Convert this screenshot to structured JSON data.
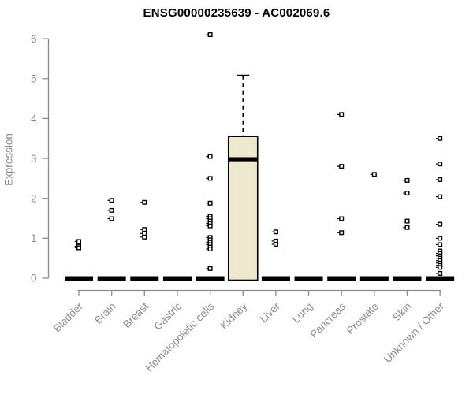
{
  "chart_data": {
    "type": "boxplot",
    "title": "ENSG00000235639 - AC002069.6",
    "ylabel": "Expression",
    "xlabel": "",
    "ylim": [
      0,
      6
    ],
    "yticks": [
      0,
      1,
      2,
      3,
      4,
      5,
      6
    ],
    "grid": false,
    "legend": false,
    "categories": [
      "Bladder",
      "Brain",
      "Breast",
      "Gastric",
      "Hematopoietic cells",
      "Kidney",
      "Liver",
      "Lung",
      "Pancreas",
      "Prostate",
      "Skin",
      "Unknown / Other"
    ],
    "boxes": [
      {
        "category": "Bladder",
        "q1": 0,
        "median": 0,
        "q3": 0,
        "whisker_low": 0,
        "whisker_high": 0,
        "outliers": [
          0.92,
          0.8,
          0.76
        ]
      },
      {
        "category": "Brain",
        "q1": 0,
        "median": 0,
        "q3": 0,
        "whisker_low": 0,
        "whisker_high": 0,
        "outliers": [
          1.95,
          1.7,
          1.49
        ]
      },
      {
        "category": "Breast",
        "q1": 0,
        "median": 0,
        "q3": 0,
        "whisker_low": 0,
        "whisker_high": 0,
        "outliers": [
          1.9,
          1.22,
          1.12,
          1.03
        ]
      },
      {
        "category": "Gastric",
        "q1": 0,
        "median": 0,
        "q3": 0,
        "whisker_low": 0,
        "whisker_high": 0,
        "outliers": []
      },
      {
        "category": "Hematopoietic cells",
        "q1": 0,
        "median": 0,
        "q3": 0,
        "whisker_low": 0,
        "whisker_high": 0,
        "outliers": [
          6.1,
          3.05,
          2.5,
          1.88,
          1.55,
          1.49,
          1.43,
          1.37,
          1.31,
          1.02,
          0.96,
          0.9,
          0.84,
          0.78,
          0.73,
          0.24
        ]
      },
      {
        "category": "Kidney",
        "q1": 0,
        "median": 2.98,
        "q3": 3.55,
        "whisker_low": 0,
        "whisker_high": 5.08,
        "outliers": []
      },
      {
        "category": "Liver",
        "q1": 0,
        "median": 0,
        "q3": 0,
        "whisker_low": 0,
        "whisker_high": 0,
        "outliers": [
          1.16,
          0.93,
          0.85
        ]
      },
      {
        "category": "Lung",
        "q1": 0,
        "median": 0,
        "q3": 0,
        "whisker_low": 0,
        "whisker_high": 0,
        "outliers": []
      },
      {
        "category": "Pancreas",
        "q1": 0,
        "median": 0,
        "q3": 0,
        "whisker_low": 0,
        "whisker_high": 0,
        "outliers": [
          4.1,
          2.8,
          1.49,
          1.14
        ]
      },
      {
        "category": "Prostate",
        "q1": 0,
        "median": 0,
        "q3": 0,
        "whisker_low": 0,
        "whisker_high": 0,
        "outliers": [
          2.6
        ]
      },
      {
        "category": "Skin",
        "q1": 0,
        "median": 0,
        "q3": 0,
        "whisker_low": 0,
        "whisker_high": 0,
        "outliers": [
          2.45,
          2.13,
          1.43,
          1.27
        ]
      },
      {
        "category": "Unknown / Other",
        "q1": 0,
        "median": 0,
        "q3": 0,
        "whisker_low": 0,
        "whisker_high": 0,
        "outliers": [
          3.5,
          2.86,
          2.47,
          2.04,
          1.35,
          1.0,
          0.84,
          0.68,
          0.62,
          0.56,
          0.5,
          0.44,
          0.38,
          0.32,
          0.27,
          0.12
        ]
      }
    ],
    "colors": {
      "box_fill": "#EDE8CE",
      "box_border": "#000000",
      "median": "#000000",
      "collapsed_box": "#000000",
      "whisker": "#000000",
      "outlier_stroke": "#000000",
      "outlier_fill": "#FFFFFF",
      "axis": "#8C8C8C",
      "tick_label": "#8C8C8C",
      "title": "#000000",
      "background": "#FFFFFF"
    }
  }
}
